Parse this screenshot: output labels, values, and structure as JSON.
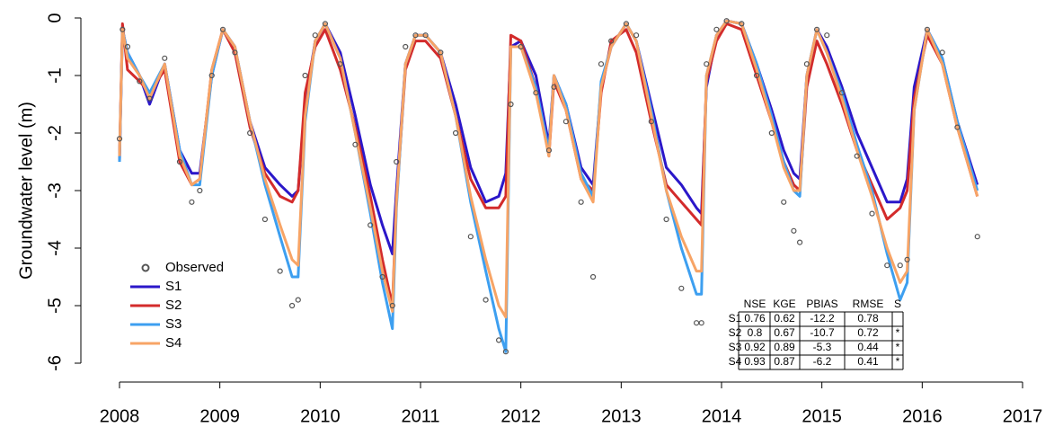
{
  "chart_data": {
    "type": "line",
    "ylabel": "Groundwater level (m)",
    "xlim": [
      2008,
      2017
    ],
    "xticks": [
      2008,
      2009,
      2010,
      2011,
      2012,
      2013,
      2014,
      2015,
      2016,
      2017
    ],
    "ylim": [
      -6,
      0
    ],
    "yticks": [
      -6,
      -5,
      -4,
      -3,
      -2,
      -1,
      0
    ],
    "legend": "lower left",
    "x": [
      2008.0,
      2008.03,
      2008.08,
      2008.2,
      2008.3,
      2008.45,
      2008.6,
      2008.72,
      2008.8,
      2008.92,
      2009.03,
      2009.15,
      2009.3,
      2009.45,
      2009.6,
      2009.72,
      2009.78,
      2009.85,
      2009.95,
      2010.05,
      2010.2,
      2010.35,
      2010.5,
      2010.62,
      2010.72,
      2010.76,
      2010.85,
      2010.95,
      2011.05,
      2011.2,
      2011.35,
      2011.5,
      2011.65,
      2011.78,
      2011.85,
      2011.9,
      2012.0,
      2012.15,
      2012.28,
      2012.33,
      2012.45,
      2012.6,
      2012.72,
      2012.8,
      2012.9,
      2013.05,
      2013.15,
      2013.3,
      2013.45,
      2013.6,
      2013.75,
      2013.8,
      2013.85,
      2013.95,
      2014.05,
      2014.2,
      2014.35,
      2014.5,
      2014.62,
      2014.72,
      2014.78,
      2014.85,
      2014.95,
      2015.05,
      2015.2,
      2015.35,
      2015.5,
      2015.65,
      2015.78,
      2015.85,
      2015.92,
      2016.05,
      2016.2,
      2016.35,
      2016.55
    ],
    "series": [
      {
        "name": "Observed",
        "color": "#555555",
        "marker": "circle",
        "values": [
          -2.1,
          -0.2,
          -0.5,
          -1.1,
          -1.4,
          -0.7,
          -2.5,
          -3.2,
          -3.0,
          -1.0,
          -0.2,
          -0.6,
          -2.0,
          -3.5,
          -4.4,
          -5.0,
          -4.9,
          -1.0,
          -0.3,
          -0.1,
          -0.8,
          -2.2,
          -3.6,
          -4.5,
          -5.0,
          -2.5,
          -0.5,
          -0.3,
          -0.3,
          -0.6,
          -2.0,
          -3.8,
          -4.9,
          -5.6,
          -5.8,
          -1.5,
          -0.5,
          -1.3,
          -2.3,
          -1.2,
          -1.8,
          -3.2,
          -4.5,
          -0.8,
          -0.4,
          -0.1,
          -0.3,
          -1.8,
          -3.5,
          -4.7,
          -5.3,
          -5.3,
          -0.8,
          -0.2,
          -0.05,
          -0.1,
          -1.0,
          -2.0,
          -3.2,
          -3.7,
          -3.9,
          -0.8,
          -0.2,
          -0.3,
          -1.3,
          -2.4,
          -3.4,
          -4.3,
          -4.3,
          -4.2,
          null,
          -0.2,
          -0.6,
          -1.9,
          -3.8
        ]
      },
      {
        "name": "S1",
        "color": "#2b17c9",
        "values": [
          -2.5,
          -0.2,
          -0.6,
          -1.0,
          -1.5,
          -0.8,
          -2.3,
          -2.7,
          -2.7,
          -1.0,
          -0.2,
          -0.5,
          -1.8,
          -2.6,
          -2.9,
          -3.1,
          -3.0,
          -1.5,
          -0.4,
          -0.1,
          -0.6,
          -1.7,
          -2.9,
          -3.6,
          -4.1,
          -3.0,
          -0.8,
          -0.3,
          -0.3,
          -0.6,
          -1.5,
          -2.6,
          -3.2,
          -3.1,
          -2.7,
          -0.5,
          -0.4,
          -1.0,
          -2.2,
          -1.0,
          -1.5,
          -2.6,
          -2.9,
          -1.2,
          -0.5,
          -0.1,
          -0.4,
          -1.5,
          -2.6,
          -2.9,
          -3.3,
          -3.4,
          -1.2,
          -0.3,
          -0.05,
          -0.1,
          -0.8,
          -1.6,
          -2.3,
          -2.7,
          -2.8,
          -1.0,
          -0.2,
          -0.5,
          -1.2,
          -2.0,
          -2.6,
          -3.2,
          -3.2,
          -2.8,
          -1.2,
          -0.2,
          -0.7,
          -1.8,
          -2.9
        ]
      },
      {
        "name": "S2",
        "color": "#d32b2b",
        "values": [
          -2.4,
          -0.1,
          -0.9,
          -1.1,
          -1.3,
          -0.9,
          -2.5,
          -2.9,
          -2.8,
          -0.9,
          -0.2,
          -0.6,
          -1.9,
          -2.7,
          -3.1,
          -3.2,
          -3.0,
          -1.3,
          -0.5,
          -0.2,
          -0.9,
          -1.9,
          -3.1,
          -4.2,
          -5.0,
          -3.2,
          -0.9,
          -0.4,
          -0.4,
          -0.7,
          -1.7,
          -2.8,
          -3.3,
          -3.3,
          -3.1,
          -0.3,
          -0.4,
          -1.2,
          -2.4,
          -1.1,
          -1.6,
          -2.8,
          -3.0,
          -1.3,
          -0.4,
          -0.2,
          -0.6,
          -1.8,
          -2.9,
          -3.2,
          -3.5,
          -3.6,
          -1.1,
          -0.4,
          -0.1,
          -0.2,
          -1.0,
          -1.8,
          -2.5,
          -2.9,
          -3.0,
          -1.2,
          -0.4,
          -0.8,
          -1.5,
          -2.3,
          -2.9,
          -3.5,
          -3.3,
          -3.0,
          -1.4,
          -0.3,
          -0.8,
          -1.9,
          -3.1
        ]
      },
      {
        "name": "S3",
        "color": "#3d9ff0",
        "values": [
          -2.5,
          -0.2,
          -0.6,
          -1.0,
          -1.3,
          -0.8,
          -2.3,
          -2.9,
          -2.9,
          -1.0,
          -0.2,
          -0.5,
          -1.8,
          -2.9,
          -3.8,
          -4.5,
          -4.5,
          -1.8,
          -0.4,
          -0.1,
          -0.7,
          -2.0,
          -3.4,
          -4.6,
          -5.4,
          -3.3,
          -0.8,
          -0.3,
          -0.3,
          -0.6,
          -1.7,
          -3.2,
          -4.4,
          -5.4,
          -5.8,
          -0.5,
          -0.5,
          -1.2,
          -2.3,
          -1.0,
          -1.5,
          -2.7,
          -3.1,
          -1.1,
          -0.5,
          -0.1,
          -0.4,
          -1.6,
          -3.0,
          -4.0,
          -4.8,
          -4.8,
          -1.0,
          -0.3,
          -0.05,
          -0.1,
          -0.8,
          -1.7,
          -2.5,
          -3.0,
          -3.1,
          -1.0,
          -0.2,
          -0.6,
          -1.3,
          -2.2,
          -3.0,
          -4.1,
          -4.9,
          -4.6,
          -1.6,
          -0.2,
          -0.7,
          -1.8,
          -3.0
        ]
      },
      {
        "name": "S4",
        "color": "#f7a466",
        "values": [
          -2.4,
          -0.2,
          -0.7,
          -1.0,
          -1.4,
          -0.8,
          -2.4,
          -2.9,
          -2.8,
          -0.9,
          -0.2,
          -0.5,
          -1.8,
          -2.8,
          -3.6,
          -4.2,
          -4.3,
          -1.7,
          -0.4,
          -0.1,
          -0.7,
          -2.0,
          -3.3,
          -4.4,
          -5.1,
          -3.2,
          -0.8,
          -0.3,
          -0.3,
          -0.6,
          -1.7,
          -3.1,
          -4.2,
          -5.0,
          -5.2,
          -0.5,
          -0.5,
          -1.3,
          -2.4,
          -1.0,
          -1.6,
          -2.8,
          -3.2,
          -1.2,
          -0.5,
          -0.1,
          -0.4,
          -1.7,
          -3.0,
          -3.8,
          -4.4,
          -4.4,
          -1.0,
          -0.3,
          -0.05,
          -0.1,
          -0.9,
          -1.8,
          -2.6,
          -3.0,
          -3.0,
          -1.0,
          -0.2,
          -0.6,
          -1.4,
          -2.3,
          -3.1,
          -4.0,
          -4.6,
          -4.4,
          -1.6,
          -0.2,
          -0.8,
          -1.9,
          -3.1
        ]
      }
    ]
  },
  "table": {
    "header": [
      "NSE",
      "KGE",
      "PBIAS",
      "RMSE",
      "S"
    ],
    "rows": [
      [
        "S1",
        0.76,
        0.62,
        -12.2,
        0.78
      ],
      [
        "S2",
        0.8,
        0.67,
        -10.7,
        0.72,
        "*"
      ],
      [
        "S3",
        0.92,
        0.89,
        -5.3,
        0.44,
        "*"
      ],
      [
        "S4",
        0.93,
        0.87,
        -6.2,
        0.41,
        "*"
      ]
    ]
  }
}
